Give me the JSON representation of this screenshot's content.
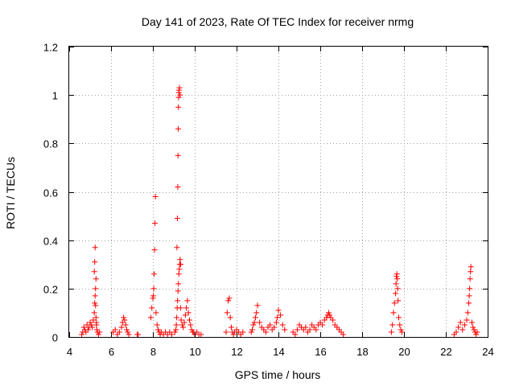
{
  "chart_data": {
    "type": "scatter",
    "title": "Day 141 of 2023, Rate Of TEC Index for receiver nrmg",
    "xlabel": "GPS time / hours",
    "ylabel": "ROTI / TECUs",
    "xlim": [
      4,
      24
    ],
    "ylim": [
      0,
      1.2
    ],
    "x_ticks": [
      4,
      6,
      8,
      10,
      12,
      14,
      16,
      18,
      20,
      22,
      24
    ],
    "x_tick_labels": [
      "4",
      "6",
      "8",
      "10",
      "12",
      "14",
      "16",
      "18",
      "20",
      "22",
      "24"
    ],
    "y_ticks": [
      0,
      0.2,
      0.4,
      0.6,
      0.8,
      1.0,
      1.2
    ],
    "y_tick_labels": [
      "0",
      "0.2",
      "0.4",
      "0.6",
      "0.8",
      "1",
      "1.2"
    ],
    "grid": true,
    "marker": "+",
    "color": "#ff0000",
    "series": [
      {
        "name": "ROTI",
        "x": [
          4.6,
          4.65,
          4.7,
          4.75,
          4.8,
          4.85,
          4.9,
          4.95,
          5.0,
          5.05,
          5.1,
          5.15,
          5.2,
          5.22,
          5.24,
          5.26,
          5.28,
          5.3,
          5.32,
          5.35,
          5.4,
          5.45,
          5.2,
          5.22,
          5.24,
          5.26,
          5.28,
          5.3,
          6.1,
          6.2,
          6.3,
          6.4,
          6.5,
          6.55,
          6.6,
          6.65,
          6.7,
          6.75,
          6.8,
          6.85,
          7.25,
          7.3,
          7.9,
          7.95,
          8.0,
          8.02,
          8.04,
          8.06,
          8.08,
          8.1,
          8.12,
          8.15,
          8.2,
          8.25,
          8.3,
          8.35,
          8.4,
          8.5,
          8.6,
          8.7,
          8.8,
          8.9,
          9.05,
          9.1,
          9.12,
          9.14,
          9.16,
          9.18,
          9.2,
          9.22,
          9.24,
          9.26,
          9.28,
          9.3,
          9.32,
          9.35,
          9.4,
          9.45,
          9.5,
          9.55,
          9.6,
          9.65,
          9.7,
          9.75,
          9.8,
          9.85,
          9.9,
          9.95,
          10.0,
          10.1,
          10.2,
          10.3,
          9.15,
          9.17,
          9.19,
          9.2,
          9.21,
          9.22,
          9.23,
          9.24,
          9.25,
          9.27,
          9.3,
          9.33,
          11.5,
          11.55,
          11.6,
          11.65,
          11.7,
          11.75,
          11.8,
          11.85,
          11.9,
          12.0,
          12.1,
          12.2,
          12.3,
          12.7,
          12.75,
          12.8,
          12.85,
          12.9,
          12.95,
          13.0,
          13.1,
          13.2,
          13.3,
          13.4,
          13.5,
          13.6,
          13.7,
          13.8,
          13.9,
          13.95,
          14.0,
          14.1,
          14.2,
          14.3,
          14.7,
          14.8,
          14.9,
          15.0,
          15.1,
          15.2,
          15.3,
          15.4,
          15.5,
          15.6,
          15.7,
          15.8,
          15.9,
          16.0,
          16.1,
          16.2,
          16.3,
          16.35,
          16.4,
          16.45,
          16.5,
          16.6,
          16.7,
          16.8,
          16.9,
          17.0,
          17.1,
          19.4,
          19.45,
          19.5,
          19.55,
          19.6,
          19.62,
          19.64,
          19.66,
          19.68,
          19.7,
          19.72,
          19.75,
          19.8,
          19.85,
          19.9,
          22.4,
          22.5,
          22.6,
          22.7,
          22.8,
          22.9,
          23.0,
          23.05,
          23.1,
          23.12,
          23.14,
          23.16,
          23.18,
          23.2,
          23.25,
          23.3,
          23.35,
          23.4,
          23.45,
          23.5
        ],
        "y": [
          0.01,
          0.02,
          0.04,
          0.03,
          0.02,
          0.05,
          0.03,
          0.04,
          0.06,
          0.05,
          0.04,
          0.07,
          0.1,
          0.14,
          0.17,
          0.2,
          0.24,
          0.05,
          0.03,
          0.02,
          0.01,
          0.02,
          0.27,
          0.31,
          0.37,
          0.13,
          0.08,
          0.06,
          0.02,
          0.03,
          0.01,
          0.02,
          0.04,
          0.06,
          0.08,
          0.07,
          0.05,
          0.03,
          0.02,
          0.01,
          0.01,
          0.01,
          0.08,
          0.12,
          0.16,
          0.17,
          0.2,
          0.26,
          0.36,
          0.47,
          0.58,
          0.1,
          0.05,
          0.03,
          0.02,
          0.01,
          0.02,
          0.01,
          0.02,
          0.01,
          0.02,
          0.01,
          0.02,
          0.03,
          0.05,
          0.08,
          0.12,
          0.15,
          0.19,
          0.22,
          0.26,
          0.28,
          0.3,
          0.32,
          0.12,
          0.07,
          0.05,
          0.04,
          0.06,
          0.09,
          0.12,
          0.15,
          0.1,
          0.07,
          0.05,
          0.03,
          0.02,
          0.02,
          0.01,
          0.02,
          0.01,
          0.01,
          0.37,
          0.49,
          0.62,
          0.75,
          0.86,
          0.95,
          0.99,
          1.01,
          1.02,
          1.03,
          1.0,
          0.3,
          0.02,
          0.1,
          0.15,
          0.16,
          0.08,
          0.04,
          0.02,
          0.01,
          0.02,
          0.03,
          0.02,
          0.01,
          0.02,
          0.02,
          0.03,
          0.05,
          0.06,
          0.08,
          0.1,
          0.13,
          0.06,
          0.04,
          0.03,
          0.02,
          0.04,
          0.05,
          0.03,
          0.04,
          0.06,
          0.08,
          0.11,
          0.09,
          0.05,
          0.03,
          0.02,
          0.01,
          0.03,
          0.05,
          0.04,
          0.03,
          0.04,
          0.02,
          0.03,
          0.05,
          0.04,
          0.03,
          0.05,
          0.06,
          0.05,
          0.07,
          0.08,
          0.09,
          0.1,
          0.09,
          0.08,
          0.07,
          0.05,
          0.04,
          0.03,
          0.02,
          0.01,
          0.02,
          0.05,
          0.1,
          0.14,
          0.18,
          0.22,
          0.25,
          0.26,
          0.24,
          0.2,
          0.15,
          0.08,
          0.05,
          0.03,
          0.02,
          0.01,
          0.02,
          0.04,
          0.06,
          0.03,
          0.05,
          0.07,
          0.1,
          0.14,
          0.17,
          0.2,
          0.24,
          0.27,
          0.29,
          0.06,
          0.04,
          0.03,
          0.02,
          0.01,
          0.02
        ]
      }
    ]
  }
}
